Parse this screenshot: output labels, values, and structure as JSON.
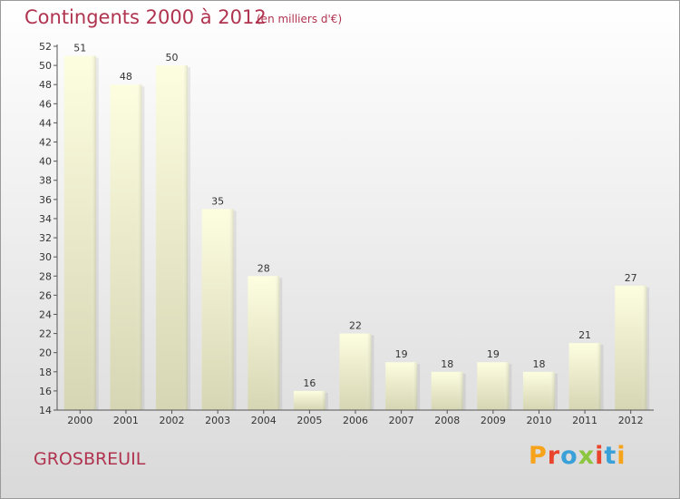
{
  "header": {
    "title": "Contingents 2000 à 2012",
    "subtitle": "(en milliers d'€)"
  },
  "footer": {
    "place": "GROSBREUIL",
    "brand": "Proxiti",
    "brand_colors": [
      "#f7a21b",
      "#e8452c",
      "#3aa0d8",
      "#8cc63f",
      "#e8452c",
      "#3aa0d8",
      "#f7a21b"
    ]
  },
  "colors": {
    "title": "#b0334f",
    "bar_top": "#fdfde0",
    "bar_bottom": "#d6d6b4"
  },
  "chart_data": {
    "type": "bar",
    "categories": [
      "2000",
      "2001",
      "2002",
      "2003",
      "2004",
      "2005",
      "2006",
      "2007",
      "2008",
      "2009",
      "2010",
      "2011",
      "2012"
    ],
    "values": [
      51,
      48,
      50,
      35,
      28,
      16,
      22,
      19,
      18,
      19,
      18,
      21,
      27
    ],
    "ylim": [
      14,
      52
    ],
    "yticks": [
      14,
      16,
      18,
      20,
      22,
      24,
      26,
      28,
      30,
      32,
      34,
      36,
      38,
      40,
      42,
      44,
      46,
      48,
      50,
      52
    ],
    "grid": false,
    "data_labels": true
  }
}
